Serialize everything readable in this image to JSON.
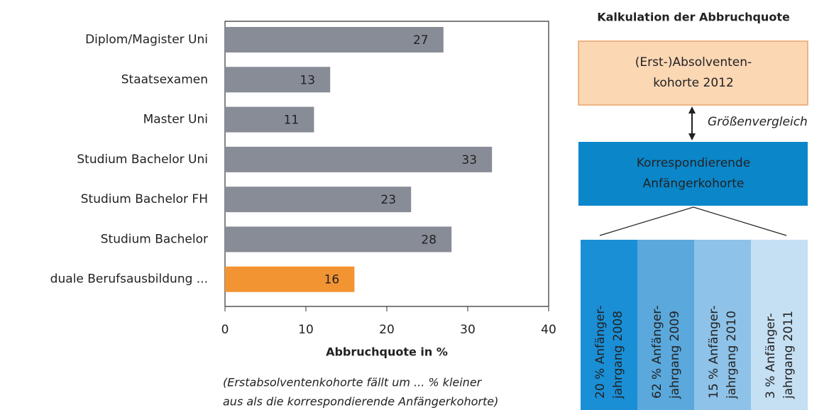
{
  "chart_data": {
    "type": "hbar",
    "categories": [
      "Diplom/Magister Uni",
      "Staatsexamen",
      "Master Uni",
      "Studium Bachelor Uni",
      "Studium Bachelor FH",
      "Studium Bachelor",
      "duale Berufsausbildung ..."
    ],
    "values": [
      27,
      13,
      11,
      33,
      23,
      28,
      16
    ],
    "colors": [
      "#878c96",
      "#878c96",
      "#878c96",
      "#878c96",
      "#878c96",
      "#878c96",
      "#f39433"
    ],
    "xlim": [
      0,
      40
    ],
    "xticks": [
      0,
      10,
      20,
      30,
      40
    ],
    "x_label": "Abbruchquote in %",
    "note": [
      "(Erstabsolventenkohorte fällt um ... % kleiner",
      "aus als die korrespondierende Anfängerkohorte)"
    ]
  },
  "diagram": {
    "title": "Kalkulation der Abbruchquote",
    "top_box": [
      "(Erst-)Absolventen-",
      "kohorte 2012"
    ],
    "arrow_label": "Größenvergleich",
    "middle_box": [
      "Korrespondierende",
      "Anfängerkohorte"
    ],
    "columns": [
      [
        "20 % Anfänger-",
        "jahrgang 2008"
      ],
      [
        "62 % Anfänger-",
        "jahrgang 2009"
      ],
      [
        "15 % Anfänger-",
        "jahrgang 2010"
      ],
      [
        "3 % Anfänger-",
        "jahrgang 2011"
      ]
    ]
  }
}
